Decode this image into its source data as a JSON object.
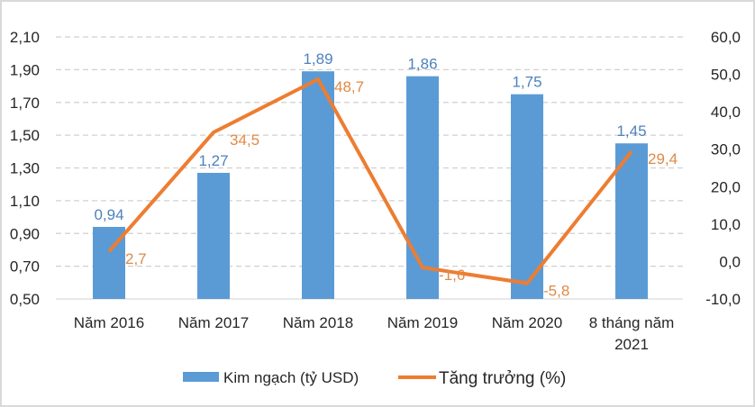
{
  "chart_data": {
    "type": "bar+line",
    "title": "",
    "categories": [
      "Năm 2016",
      "Năm 2017",
      "Năm 2018",
      "Năm 2019",
      "Năm 2020",
      "8 tháng năm 2021"
    ],
    "category_lines": [
      [
        "Năm 2016"
      ],
      [
        "Năm 2017"
      ],
      [
        "Năm 2018"
      ],
      [
        "Năm 2019"
      ],
      [
        "Năm 2020"
      ],
      [
        "8 tháng năm",
        "2021"
      ]
    ],
    "series": [
      {
        "name": "Kim ngạch (tỷ USD)",
        "type": "bar",
        "axis": "left",
        "color": "#5b9bd5",
        "label_color": "#4f81bd",
        "values": [
          0.94,
          1.27,
          1.89,
          1.86,
          1.75,
          1.45
        ],
        "labels": [
          "0,94",
          "1,27",
          "1,89",
          "1,86",
          "1,75",
          "1,45"
        ]
      },
      {
        "name": "Tăng trưởng (%)",
        "type": "line",
        "axis": "right",
        "color": "#ed7d31",
        "label_color": "#e08a45",
        "values": [
          2.7,
          34.5,
          48.7,
          -1.6,
          -5.8,
          29.4
        ],
        "labels": [
          "2,7",
          "34,5",
          "48,7",
          "-1,6",
          "-5,8",
          "29,4"
        ]
      }
    ],
    "left_axis": {
      "range": [
        0.5,
        2.1
      ],
      "ticks": [
        0.5,
        0.7,
        0.9,
        1.1,
        1.3,
        1.5,
        1.7,
        1.9,
        2.1
      ],
      "tick_labels": [
        "0,50",
        "0,70",
        "0,90",
        "1,10",
        "1,30",
        "1,50",
        "1,70",
        "1,90",
        "2,10"
      ]
    },
    "right_axis": {
      "range": [
        -10,
        60
      ],
      "ticks": [
        -10,
        0,
        10,
        20,
        30,
        40,
        50,
        60
      ],
      "tick_labels": [
        "-10,0",
        "0,0",
        "10,0",
        "20,0",
        "30,0",
        "40,0",
        "50,0",
        "60,0"
      ]
    },
    "grid": true,
    "legend_position": "bottom",
    "legend": [
      "Kim ngạch (tỷ USD)",
      "Tăng trưởng (%)"
    ]
  }
}
